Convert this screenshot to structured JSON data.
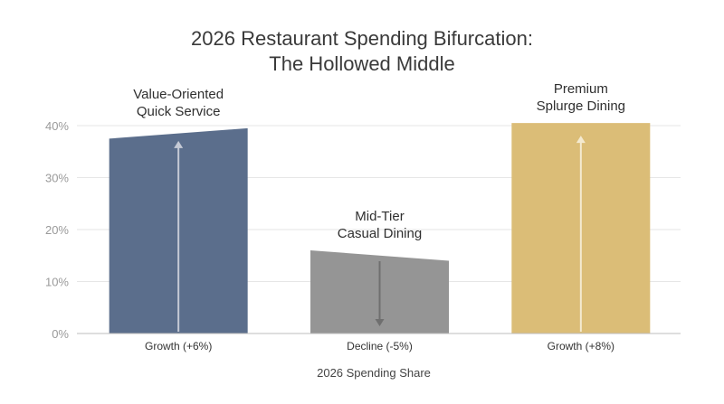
{
  "chart_data": {
    "type": "bar",
    "title_lines": [
      "2026 Restaurant Spending Bifurcation:",
      "The Hollowed Middle"
    ],
    "xlabel": "2026 Spending Share",
    "ylabel": "",
    "ylim": [
      0,
      40
    ],
    "yticks": [
      "0%",
      "10%",
      "20%",
      "30%",
      "40%"
    ],
    "grid": true,
    "categories": [
      "Growth (+6%)",
      "Decline (-5%)",
      "Growth (+8%)"
    ],
    "bar_labels": [
      [
        "Value-Oriented",
        "Quick Service"
      ],
      [
        "Mid-Tier",
        "Casual Dining"
      ],
      [
        "Premium",
        "Splurge Dining"
      ]
    ],
    "series": [
      {
        "values_left": [
          37.5,
          16,
          40.5
        ],
        "values_right": [
          39.5,
          14,
          40.5
        ]
      }
    ],
    "trend_arrows": [
      "up",
      "down",
      "up"
    ],
    "colors": [
      "#5b6e8c",
      "#959595",
      "#dbbd77"
    ],
    "arrow_colors": [
      "#c5cad5",
      "#6f6f6f",
      "#f4ead0"
    ]
  }
}
